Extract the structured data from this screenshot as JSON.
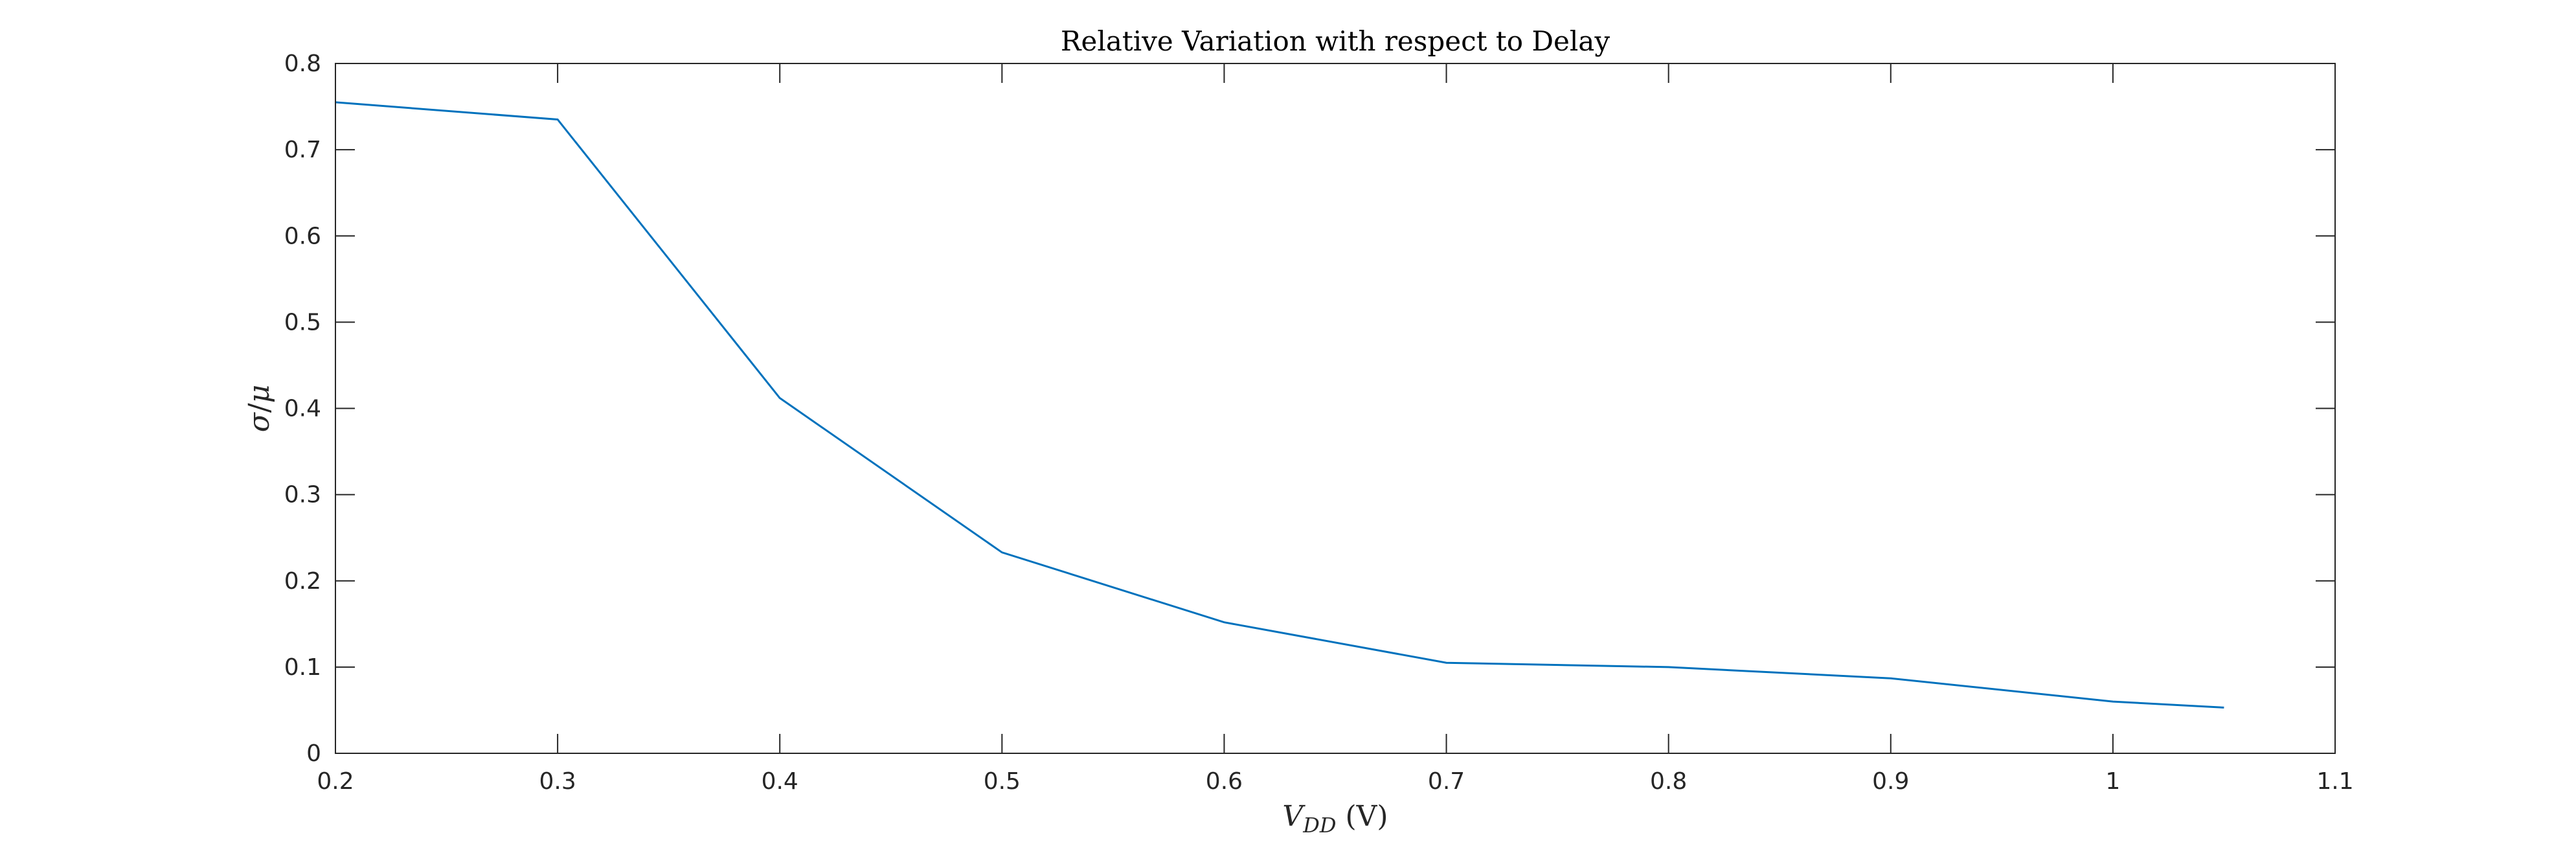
{
  "chart_data": {
    "type": "line",
    "title": "Relative Variation with respect to Delay",
    "xlabel": {
      "main": "V",
      "subscript": "DD",
      "unit": " (V)"
    },
    "ylabel": {
      "numerator": "σ",
      "slash": "/",
      "denominator": "μ"
    },
    "xlim": [
      0.2,
      1.1
    ],
    "ylim": [
      0,
      0.8
    ],
    "xticks": [
      0.2,
      0.3,
      0.4,
      0.5,
      0.6,
      0.7,
      0.8,
      0.9,
      1.0,
      1.1
    ],
    "xtick_labels": [
      "0.2",
      "0.3",
      "0.4",
      "0.5",
      "0.6",
      "0.7",
      "0.8",
      "0.9",
      "1",
      "1.1"
    ],
    "yticks": [
      0,
      0.1,
      0.2,
      0.3,
      0.4,
      0.5,
      0.6,
      0.7,
      0.8
    ],
    "ytick_labels": [
      "0",
      "0.1",
      "0.2",
      "0.3",
      "0.4",
      "0.5",
      "0.6",
      "0.7",
      "0.8"
    ],
    "grid": false,
    "box": true,
    "series": [
      {
        "color": "#0072BD",
        "x": [
          0.2,
          0.3,
          0.4,
          0.5,
          0.6,
          0.7,
          0.8,
          0.9,
          1.0,
          1.05
        ],
        "y": [
          0.755,
          0.735,
          0.412,
          0.233,
          0.152,
          0.105,
          0.1,
          0.087,
          0.06,
          0.053
        ]
      }
    ]
  }
}
